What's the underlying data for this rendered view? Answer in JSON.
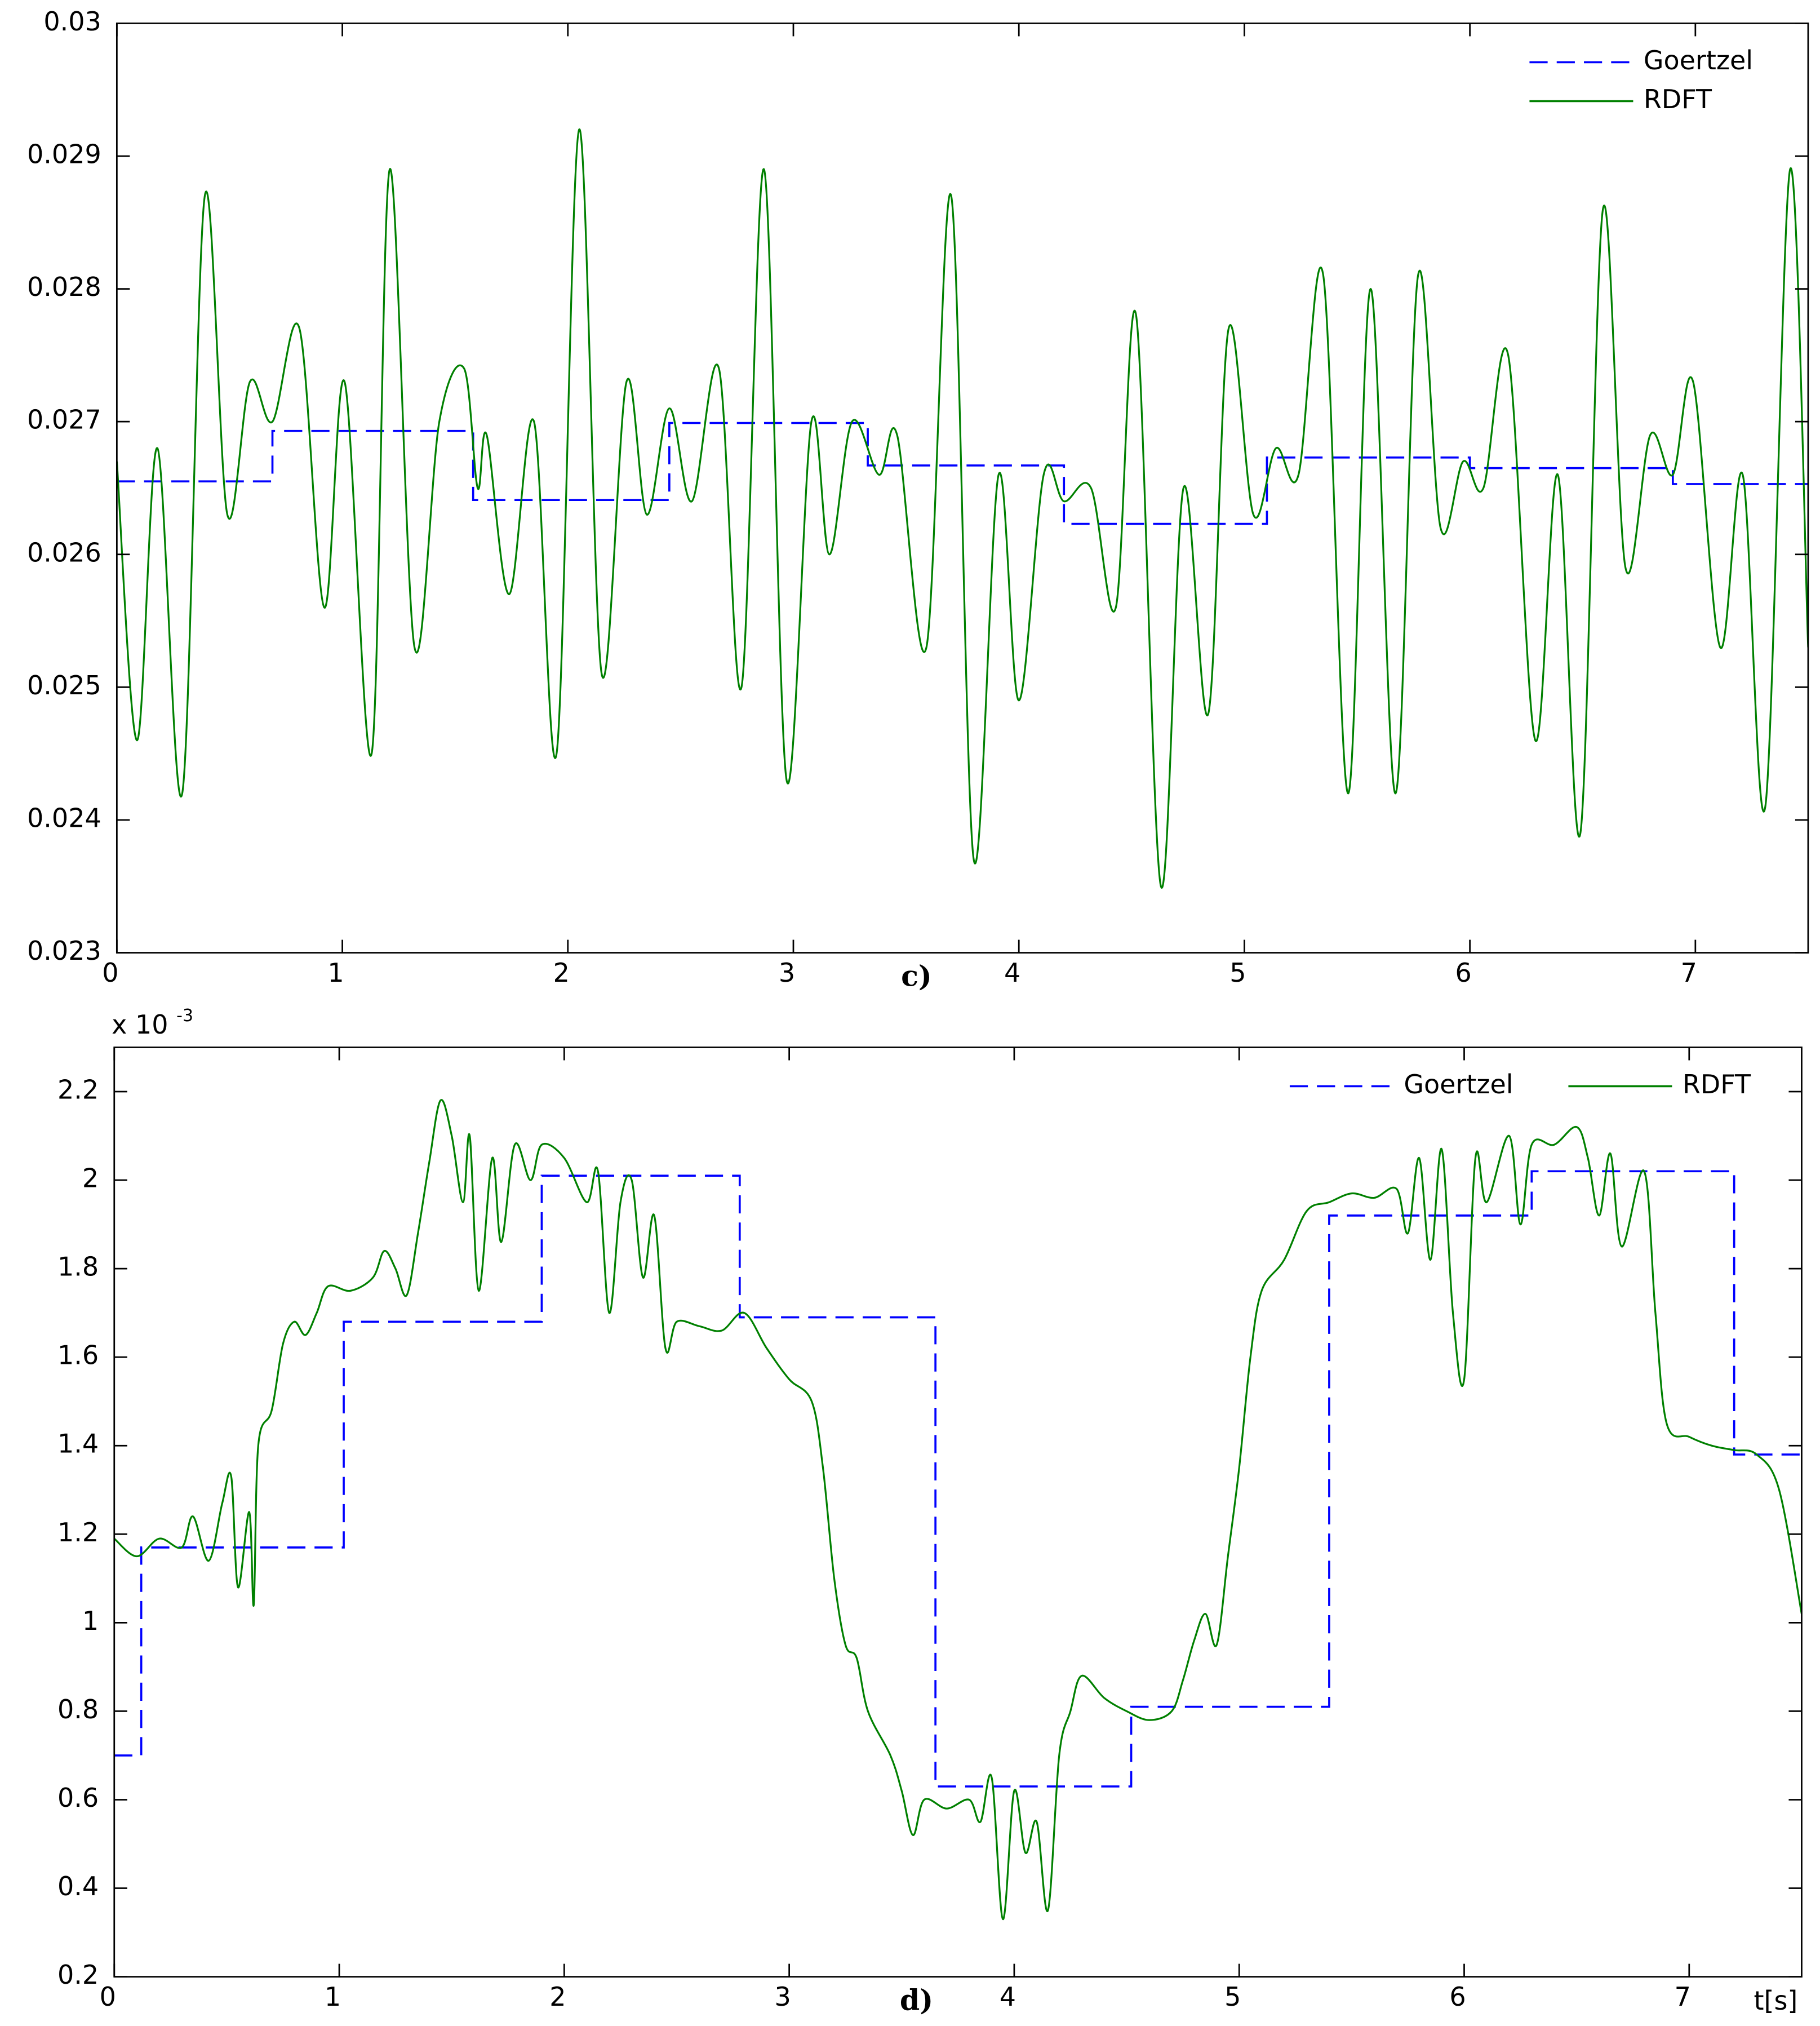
{
  "chart_data": [
    {
      "type": "line",
      "subplot_label": "c)",
      "legend": "upper right",
      "legend_layout": "vertical",
      "grid": false,
      "xlim": [
        0,
        7.5
      ],
      "ylim": [
        0.023,
        0.03
      ],
      "xticks": [
        0,
        1,
        2,
        3,
        4,
        5,
        6,
        7
      ],
      "yticks": [
        0.023,
        0.024,
        0.025,
        0.026,
        0.027,
        0.028,
        0.029,
        0.03
      ],
      "series": [
        {
          "name": "Goertzel",
          "color": "#0000ff",
          "linestyle": "dashed",
          "x": [
            0,
            0.69,
            0.69,
            1.58,
            1.58,
            2.45,
            2.45,
            3.33,
            3.33,
            4.2,
            4.2,
            5.1,
            5.1,
            6.0,
            6.0,
            6.9,
            6.9,
            7.5
          ],
          "values": [
            0.02655,
            0.02655,
            0.02693,
            0.02693,
            0.02641,
            0.02641,
            0.02699,
            0.02699,
            0.02667,
            0.02667,
            0.02623,
            0.02623,
            0.02673,
            0.02673,
            0.02665,
            0.02665,
            0.02653,
            0.02653
          ]
        },
        {
          "name": "RDFT",
          "color": "#008000",
          "linestyle": "solid",
          "x": [
            0,
            0.09,
            0.18,
            0.29,
            0.39,
            0.49,
            0.59,
            0.69,
            0.81,
            0.92,
            1.01,
            1.13,
            1.21,
            1.32,
            1.43,
            1.54,
            1.6,
            1.64,
            1.74,
            1.85,
            1.95,
            2.05,
            2.15,
            2.26,
            2.35,
            2.45,
            2.55,
            2.67,
            2.77,
            2.87,
            2.97,
            3.08,
            3.16,
            3.26,
            3.38,
            3.46,
            3.59,
            3.7,
            3.8,
            3.91,
            4.0,
            4.11,
            4.2,
            4.32,
            4.43,
            4.52,
            4.63,
            4.73,
            4.84,
            4.93,
            5.04,
            5.14,
            5.24,
            5.35,
            5.46,
            5.56,
            5.67,
            5.77,
            5.87,
            5.97,
            6.06,
            6.17,
            6.29,
            6.39,
            6.49,
            6.59,
            6.69,
            6.8,
            6.9,
            6.99,
            7.11,
            7.21,
            7.31,
            7.42,
            7.5
          ],
          "values": [
            0.0267,
            0.0246,
            0.0268,
            0.0242,
            0.0287,
            0.0263,
            0.0273,
            0.027,
            0.0277,
            0.0256,
            0.0273,
            0.0245,
            0.0289,
            0.0253,
            0.027,
            0.0274,
            0.0265,
            0.0269,
            0.0257,
            0.027,
            0.0245,
            0.0292,
            0.0251,
            0.0273,
            0.0263,
            0.0271,
            0.0264,
            0.0274,
            0.025,
            0.0289,
            0.0243,
            0.027,
            0.026,
            0.027,
            0.0266,
            0.0269,
            0.0253,
            0.0287,
            0.0237,
            0.0266,
            0.0249,
            0.0266,
            0.0264,
            0.0265,
            0.0256,
            0.0278,
            0.0235,
            0.0265,
            0.0248,
            0.0277,
            0.0263,
            0.0268,
            0.0266,
            0.0281,
            0.0242,
            0.028,
            0.0242,
            0.0281,
            0.0262,
            0.0267,
            0.0265,
            0.0275,
            0.0246,
            0.0266,
            0.0239,
            0.0286,
            0.0259,
            0.0269,
            0.0266,
            0.0273,
            0.0253,
            0.0266,
            0.0241,
            0.0289,
            0.0253
          ]
        }
      ]
    },
    {
      "type": "line",
      "subplot_label": "d)",
      "x_label": "t[s]",
      "y_multiplier": "x 10",
      "y_multiplier_exponent": "-3",
      "legend": "upper right",
      "legend_layout": "horizontal",
      "grid": false,
      "xlim": [
        0,
        7.5
      ],
      "ylim": [
        0.2,
        2.3
      ],
      "xticks": [
        0,
        1,
        2,
        3,
        4,
        5,
        6,
        7
      ],
      "yticks": [
        0.2,
        0.4,
        0.6,
        0.8,
        1,
        1.2,
        1.4,
        1.6,
        1.8,
        2,
        2.2
      ],
      "series": [
        {
          "name": "Goertzel",
          "color": "#0000ff",
          "linestyle": "dashed",
          "x": [
            0,
            0.12,
            0.12,
            1.02,
            1.02,
            1.9,
            1.9,
            2.78,
            2.78,
            3.65,
            3.65,
            4.52,
            4.52,
            5.4,
            5.4,
            6.3,
            6.3,
            7.2,
            7.2,
            7.5
          ],
          "values": [
            0.7,
            0.7,
            1.17,
            1.17,
            1.68,
            1.68,
            2.01,
            2.01,
            1.69,
            1.69,
            0.63,
            0.63,
            0.81,
            0.81,
            1.92,
            1.92,
            2.02,
            2.02,
            1.38,
            1.38
          ]
        },
        {
          "name": "RDFT",
          "color": "#008000",
          "linestyle": "solid",
          "x": [
            0,
            0.1,
            0.2,
            0.3,
            0.35,
            0.42,
            0.48,
            0.52,
            0.55,
            0.6,
            0.62,
            0.64,
            0.7,
            0.75,
            0.8,
            0.85,
            0.9,
            0.95,
            1.05,
            1.15,
            1.2,
            1.25,
            1.3,
            1.35,
            1.4,
            1.45,
            1.5,
            1.55,
            1.58,
            1.62,
            1.68,
            1.72,
            1.78,
            1.85,
            1.9,
            2.0,
            2.1,
            2.15,
            2.2,
            2.25,
            2.3,
            2.35,
            2.4,
            2.45,
            2.5,
            2.6,
            2.7,
            2.8,
            2.9,
            3.0,
            3.1,
            3.15,
            3.2,
            3.25,
            3.3,
            3.35,
            3.45,
            3.5,
            3.55,
            3.6,
            3.7,
            3.8,
            3.85,
            3.9,
            3.95,
            4.0,
            4.05,
            4.1,
            4.15,
            4.2,
            4.25,
            4.3,
            4.4,
            4.5,
            4.6,
            4.7,
            4.75,
            4.8,
            4.85,
            4.9,
            4.95,
            5.0,
            5.05,
            5.1,
            5.2,
            5.3,
            5.4,
            5.5,
            5.6,
            5.7,
            5.75,
            5.8,
            5.85,
            5.9,
            5.95,
            6.0,
            6.05,
            6.1,
            6.2,
            6.25,
            6.3,
            6.4,
            6.5,
            6.55,
            6.6,
            6.65,
            6.7,
            6.8,
            6.85,
            6.9,
            7.0,
            7.1,
            7.2,
            7.3,
            7.4,
            7.5
          ],
          "values": [
            1.19,
            1.15,
            1.19,
            1.17,
            1.24,
            1.14,
            1.27,
            1.33,
            1.08,
            1.25,
            1.04,
            1.4,
            1.48,
            1.63,
            1.68,
            1.65,
            1.7,
            1.76,
            1.75,
            1.78,
            1.84,
            1.8,
            1.74,
            1.88,
            2.04,
            2.18,
            2.1,
            1.95,
            2.1,
            1.75,
            2.05,
            1.86,
            2.08,
            2.0,
            2.08,
            2.05,
            1.95,
            2.02,
            1.7,
            1.95,
            2.0,
            1.78,
            1.92,
            1.62,
            1.68,
            1.67,
            1.66,
            1.7,
            1.62,
            1.55,
            1.5,
            1.35,
            1.1,
            0.95,
            0.92,
            0.8,
            0.7,
            0.62,
            0.52,
            0.6,
            0.58,
            0.6,
            0.55,
            0.65,
            0.33,
            0.62,
            0.48,
            0.55,
            0.35,
            0.7,
            0.8,
            0.88,
            0.83,
            0.8,
            0.78,
            0.8,
            0.87,
            0.96,
            1.02,
            0.95,
            1.15,
            1.35,
            1.6,
            1.75,
            1.82,
            1.93,
            1.95,
            1.97,
            1.96,
            1.98,
            1.88,
            2.05,
            1.82,
            2.07,
            1.7,
            1.55,
            2.05,
            1.95,
            2.1,
            1.9,
            2.08,
            2.08,
            2.12,
            2.05,
            1.92,
            2.06,
            1.85,
            2.02,
            1.7,
            1.45,
            1.42,
            1.4,
            1.39,
            1.38,
            1.3,
            1.02
          ]
        }
      ]
    }
  ]
}
